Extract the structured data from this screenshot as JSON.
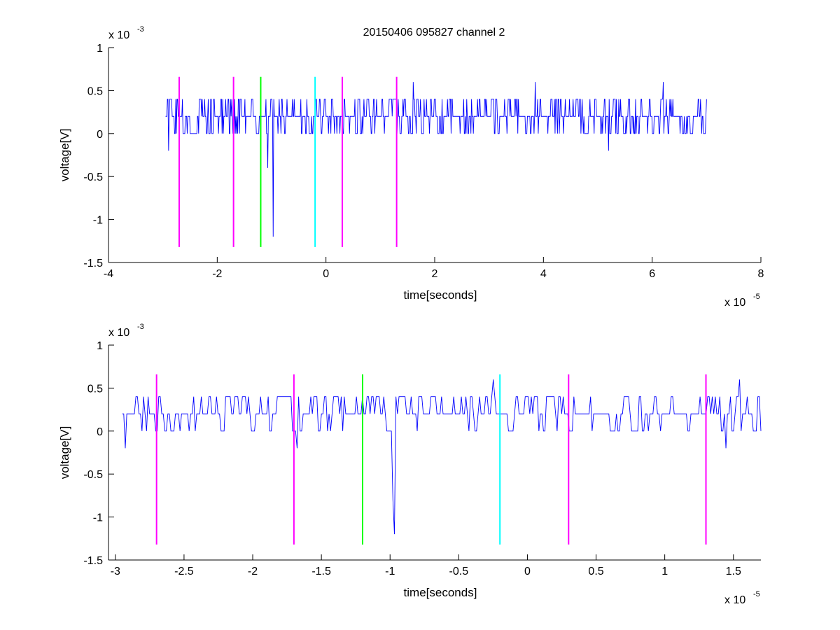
{
  "title": "20150406 095827 channel 2",
  "chart_data": [
    {
      "type": "line",
      "title": "20150406 095827 channel 2",
      "xlabel": "time[seconds]",
      "ylabel": "voltage[V]",
      "x_exponent_label": "x 10",
      "x_exponent": "-5",
      "y_exponent_label": "x 10",
      "y_exponent": "-3",
      "xlim": [
        -4,
        8
      ],
      "ylim": [
        -1.5,
        1
      ],
      "x_ticks": [
        "-4",
        "-2",
        "0",
        "2",
        "4",
        "6",
        "8"
      ],
      "x_tick_values": [
        -4,
        -2,
        0,
        2,
        4,
        6,
        8
      ],
      "y_ticks": [
        "1",
        "0.5",
        "0",
        "-0.5",
        "-1",
        "-1.5"
      ],
      "y_tick_values": [
        1,
        0.5,
        0,
        -0.5,
        -1,
        -1.5
      ],
      "grid": false,
      "series": [
        {
          "color": "#0000ff",
          "x_range": [
            -2.95,
            7.0
          ],
          "levels": [
            0,
            0.2,
            0.4
          ],
          "description_of_values": "quantized noise trace between 0 and 0.4 (x10^-3 V) with occasional excursions",
          "spikes": [
            {
              "x": -0.97,
              "y": -1.2
            },
            {
              "x": -1.07,
              "y": -0.4
            },
            {
              "x": -2.9,
              "y": -0.2
            },
            {
              "x": 3.85,
              "y": 0.6
            },
            {
              "x": 6.2,
              "y": 0.6
            },
            {
              "x": 1.6,
              "y": 0.6
            },
            {
              "x": 5.2,
              "y": -0.2
            }
          ]
        }
      ],
      "vertical_markers": [
        {
          "x": -2.7,
          "color": "#ff00ff",
          "ymin": -1.32,
          "ymax": 0.66
        },
        {
          "x": -1.7,
          "color": "#ff00ff",
          "ymin": -1.32,
          "ymax": 0.66
        },
        {
          "x": -1.2,
          "color": "#00ff00",
          "ymin": -1.32,
          "ymax": 0.66
        },
        {
          "x": -0.2,
          "color": "#00ffff",
          "ymin": -1.32,
          "ymax": 0.66
        },
        {
          "x": 0.3,
          "color": "#ff00ff",
          "ymin": -1.32,
          "ymax": 0.66
        },
        {
          "x": 1.3,
          "color": "#ff00ff",
          "ymin": -1.32,
          "ymax": 0.66
        }
      ]
    },
    {
      "type": "line",
      "title": "",
      "xlabel": "time[seconds]",
      "ylabel": "voltage[V]",
      "x_exponent_label": "x 10",
      "x_exponent": "-5",
      "y_exponent_label": "x 10",
      "y_exponent": "-3",
      "xlim": [
        -3.05,
        1.7
      ],
      "ylim": [
        -1.5,
        1
      ],
      "x_ticks": [
        "-3",
        "-2.5",
        "-2",
        "-1.5",
        "-1",
        "-0.5",
        "0",
        "0.5",
        "1",
        "1.5"
      ],
      "x_tick_values": [
        -3,
        -2.5,
        -2,
        -1.5,
        -1,
        -0.5,
        0,
        0.5,
        1,
        1.5
      ],
      "y_ticks": [
        "1",
        "0.5",
        "0",
        "-0.5",
        "-1",
        "-1.5"
      ],
      "y_tick_values": [
        1,
        0.5,
        0,
        -0.5,
        -1,
        -1.5
      ],
      "grid": false,
      "series": [
        {
          "color": "#0000ff",
          "x_range": [
            -2.95,
            1.7
          ],
          "levels": [
            0,
            0.2,
            0.4
          ],
          "description_of_values": "zoomed view of the same trace",
          "spikes": [
            {
              "x": -0.97,
              "y": -1.2
            },
            {
              "x": -0.98,
              "y": -0.8
            },
            {
              "x": -2.93,
              "y": -0.2
            },
            {
              "x": -1.68,
              "y": -0.2
            },
            {
              "x": 1.55,
              "y": 0.6
            },
            {
              "x": -0.25,
              "y": 0.6
            },
            {
              "x": 1.45,
              "y": -0.2
            }
          ]
        }
      ],
      "vertical_markers": [
        {
          "x": -2.7,
          "color": "#ff00ff",
          "ymin": -1.32,
          "ymax": 0.66
        },
        {
          "x": -1.7,
          "color": "#ff00ff",
          "ymin": -1.32,
          "ymax": 0.66
        },
        {
          "x": -1.2,
          "color": "#00ff00",
          "ymin": -1.32,
          "ymax": 0.66
        },
        {
          "x": -0.2,
          "color": "#00ffff",
          "ymin": -1.32,
          "ymax": 0.66
        },
        {
          "x": 0.3,
          "color": "#ff00ff",
          "ymin": -1.32,
          "ymax": 0.66
        },
        {
          "x": 1.3,
          "color": "#ff00ff",
          "ymin": -1.32,
          "ymax": 0.66
        }
      ]
    }
  ]
}
